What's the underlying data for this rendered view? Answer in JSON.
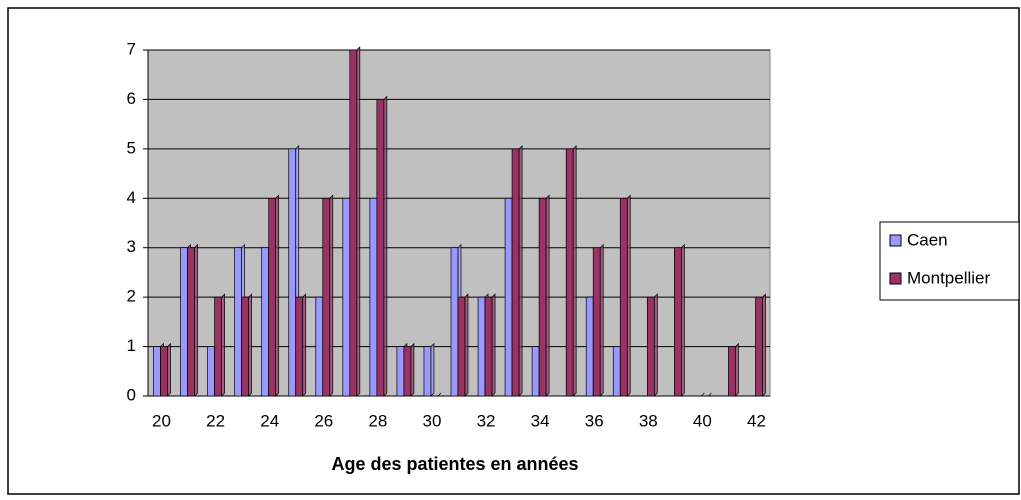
{
  "chart_data": {
    "type": "bar",
    "x_label": "Age des patientes en années",
    "categories": [
      "20",
      null,
      "22",
      null,
      "24",
      null,
      "26",
      null,
      "28",
      null,
      "30",
      null,
      "32",
      null,
      "34",
      null,
      "36",
      null,
      "38",
      null,
      "40",
      null,
      "42"
    ],
    "series": [
      {
        "name": "Caen",
        "color": "#9999ff",
        "values": [
          1,
          3,
          1,
          3,
          3,
          5,
          2,
          4,
          4,
          1,
          1,
          3,
          2,
          4,
          1,
          0,
          2,
          1,
          0,
          0,
          0,
          0,
          0
        ]
      },
      {
        "name": "Montpellier",
        "color": "#993366",
        "values": [
          1,
          3,
          2,
          2,
          4,
          2,
          4,
          7,
          6,
          1,
          0,
          2,
          2,
          5,
          4,
          5,
          3,
          4,
          2,
          3,
          0,
          1,
          2
        ]
      }
    ],
    "ylim": [
      0,
      7
    ],
    "yticks": [
      0,
      1,
      2,
      3,
      4,
      5,
      6,
      7
    ],
    "grid": true,
    "legend": "right"
  }
}
